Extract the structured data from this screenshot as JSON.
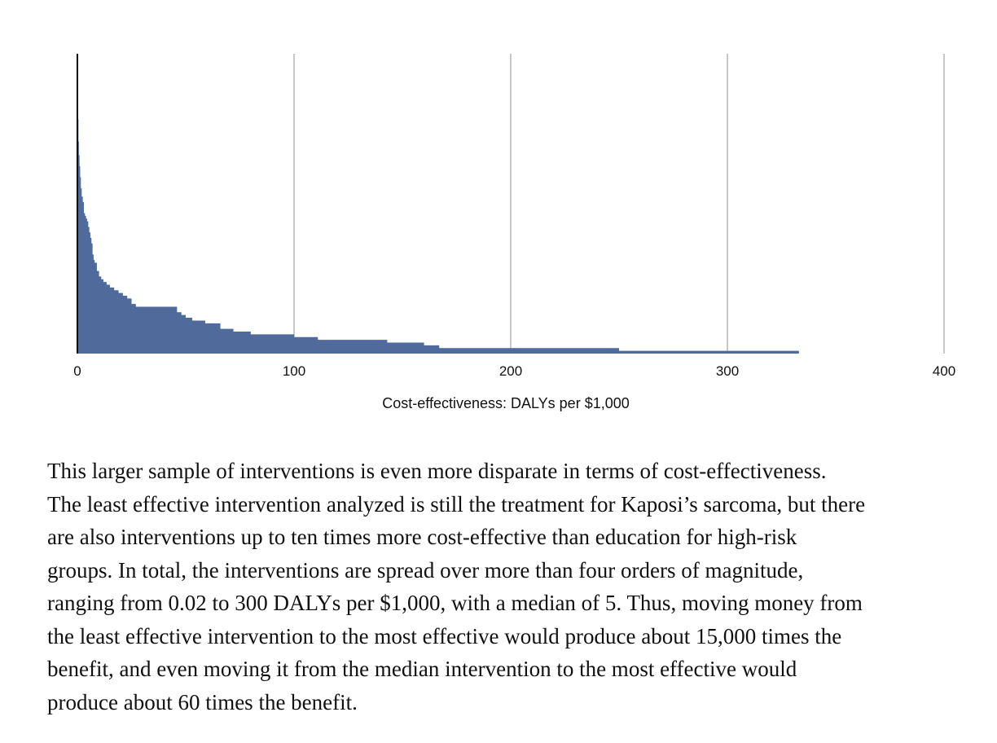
{
  "chart_data": {
    "type": "area",
    "xlabel": "Cost-effectiveness: DALYs per $1,000",
    "ylabel": "",
    "title": "",
    "xlim": [
      0,
      400
    ],
    "xticks": [
      "0",
      "100",
      "200",
      "300",
      "400"
    ],
    "x_tick_values": [
      0,
      100,
      200,
      300,
      400
    ],
    "grid": "vertical",
    "legend": "none",
    "fill_color": "#4f6a9b",
    "axis_color": "#000000",
    "grid_color": "#b5b5b5",
    "series": [
      {
        "x": [
          0,
          0.1,
          0.3,
          0.5,
          0.7,
          1.0,
          1.3,
          1.6,
          2.0,
          2.5,
          3.0,
          3.5,
          4.0,
          4.5,
          5.0,
          5.5,
          6.0,
          6.5,
          7.0,
          7.5,
          8.0,
          9.0,
          10.0,
          11.0,
          12.0,
          13.5,
          15.0,
          17.0,
          19.0,
          21.0,
          23.0,
          25.0,
          27.0,
          30.0,
          35.0,
          42.0,
          46.0,
          48.0,
          50.0,
          53.0,
          59.0,
          66.0,
          72.0,
          80.0,
          91.0,
          100.0,
          111.0,
          130.0,
          143.0,
          160.0,
          167.0,
          190.0,
          230.0,
          250.0,
          260.0,
          290.0,
          333.0
        ],
        "y": [
          1.0,
          0.93,
          0.85,
          0.77,
          0.72,
          0.68,
          0.64,
          0.6,
          0.57,
          0.55,
          0.51,
          0.5,
          0.49,
          0.48,
          0.46,
          0.44,
          0.42,
          0.4,
          0.36,
          0.34,
          0.33,
          0.3,
          0.28,
          0.27,
          0.26,
          0.25,
          0.24,
          0.23,
          0.22,
          0.21,
          0.2,
          0.18,
          0.17,
          0.17,
          0.17,
          0.17,
          0.15,
          0.14,
          0.13,
          0.12,
          0.11,
          0.09,
          0.08,
          0.07,
          0.07,
          0.06,
          0.05,
          0.05,
          0.04,
          0.03,
          0.02,
          0.02,
          0.02,
          0.01,
          0.01,
          0.01,
          0.01
        ]
      }
    ]
  },
  "paragraph_lines": [
    "This larger sample of interventions is even more disparate in terms of cost-effectiveness.",
    "The least effective intervention analyzed is still the treatment for Kaposi’s sarcoma, but there",
    "are also interventions up to ten times more cost-effective than education for high-risk",
    "groups. In total, the interventions are spread over more than four orders of magnitude,",
    "ranging from 0.02 to 300 DALYs per $1,000, with a median of 5. Thus, moving money from",
    "the least effective intervention to the most effective would produce about 15,000 times the",
    "benefit, and even moving it from the median intervention to the most effective would",
    "produce about 60 times the benefit."
  ]
}
